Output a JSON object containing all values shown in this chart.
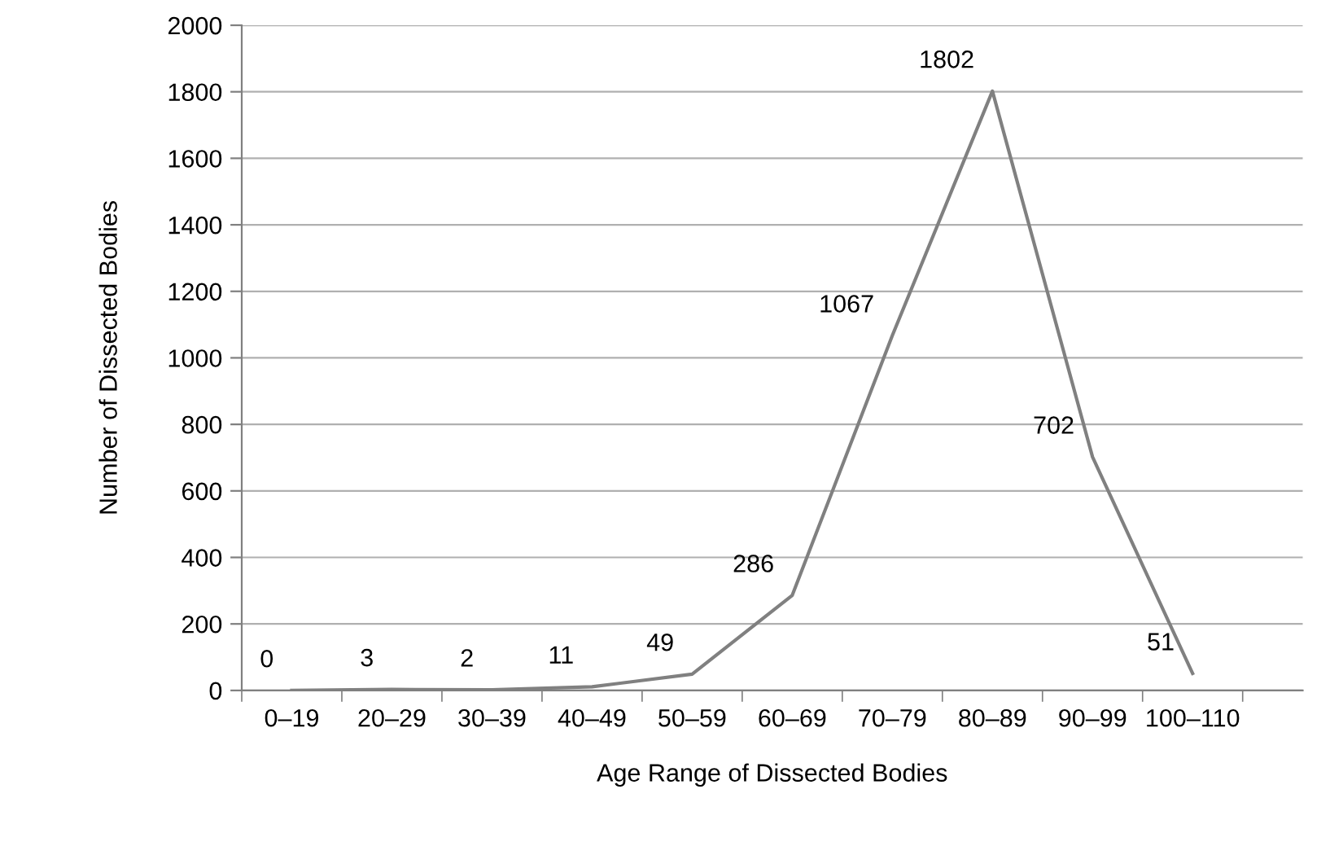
{
  "chart_data": {
    "type": "line",
    "xlabel": "Age Range of Dissected Bodies",
    "ylabel": "Number of Dissected Bodies",
    "categories": [
      "0–19",
      "20–29",
      "30–39",
      "40–49",
      "50–59",
      "60–69",
      "70–79",
      "80–89",
      "90–99",
      "100–110"
    ],
    "values": [
      0,
      3,
      2,
      11,
      49,
      286,
      1067,
      1802,
      702,
      51
    ],
    "color": "#808080",
    "ylim": [
      0,
      2000
    ],
    "yticks": [
      0,
      200,
      400,
      600,
      800,
      1000,
      1200,
      1400,
      1600,
      1800,
      2000
    ],
    "grid": "y",
    "data_labels": true,
    "marker": "none",
    "line_style": "solid",
    "legend": false
  }
}
